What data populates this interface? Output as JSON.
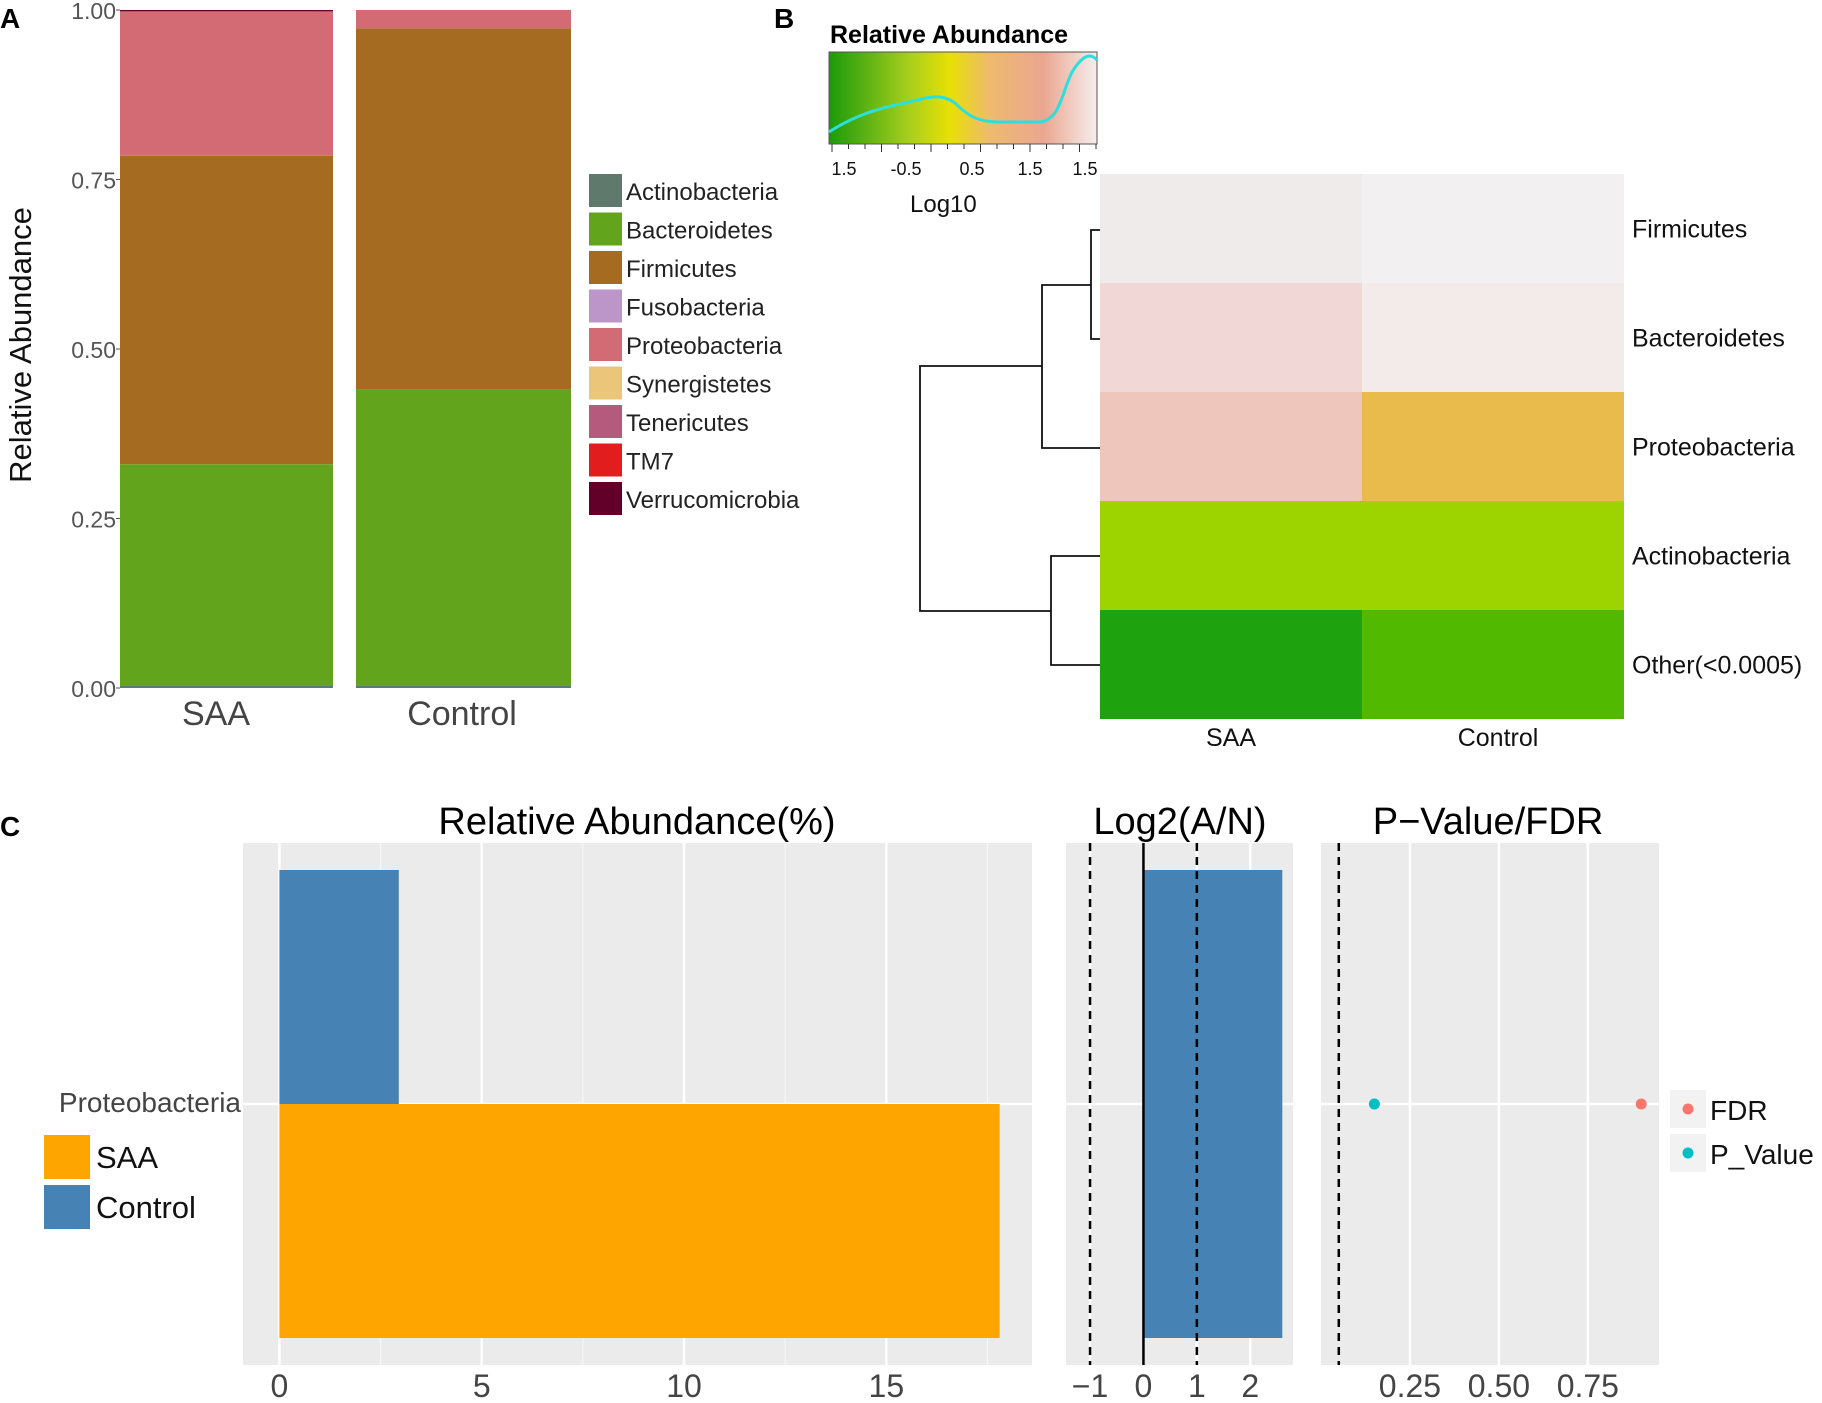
{
  "panels": {
    "a": "A",
    "b": "B",
    "c": "C"
  },
  "chart_data": [
    {
      "id": "A",
      "type": "bar",
      "stacked": true,
      "ylabel": "Relative Abundance",
      "ylim": [
        0,
        1
      ],
      "yticks": [
        "0.00",
        "0.25",
        "0.50",
        "0.75",
        "1.00"
      ],
      "categories": [
        "SAA",
        "Control"
      ],
      "series": [
        {
          "name": "Actinobacteria",
          "color": "#5f7a6d",
          "values": [
            0.003,
            0.003
          ]
        },
        {
          "name": "Bacteroidetes",
          "color": "#62a51d",
          "values": [
            0.327,
            0.437
          ]
        },
        {
          "name": "Firmicutes",
          "color": "#a56b20",
          "values": [
            0.455,
            0.533
          ]
        },
        {
          "name": "Fusobacteria",
          "color": "#bc95c9",
          "values": [
            0.0,
            0.0
          ]
        },
        {
          "name": "Proteobacteria",
          "color": "#d26b73",
          "values": [
            0.213,
            0.027
          ]
        },
        {
          "name": "Synergistetes",
          "color": "#e9c67a",
          "values": [
            0.0,
            0.0
          ]
        },
        {
          "name": "Tenericutes",
          "color": "#b55a7c",
          "values": [
            0.0,
            0.0
          ]
        },
        {
          "name": "TM7",
          "color": "#e21d1d",
          "values": [
            0.0,
            0.0
          ]
        },
        {
          "name": "Verrucomicrobia",
          "color": "#620029",
          "values": [
            0.002,
            0.0
          ]
        }
      ]
    },
    {
      "id": "B",
      "type": "heatmap",
      "legend_title": "Relative Abundance",
      "legend_xlabel": "Log10",
      "legend_ticks": [
        "1.5",
        "-0.5",
        "0.5",
        "1.5",
        "1.5"
      ],
      "columns": [
        "SAA",
        "Control"
      ],
      "rows": [
        "Firmicutes",
        "Bacteroidetes",
        "Proteobacteria",
        "Actinobacteria",
        "Other(<0.0005)"
      ],
      "colors": [
        [
          "#f0ebeb",
          "#f2f0f0"
        ],
        [
          "#f1d8d6",
          "#f2ebea"
        ],
        [
          "#eec6bc",
          "#e8bb4c"
        ],
        [
          "#9dd400",
          "#9dd400"
        ],
        [
          "#1ea20e",
          "#51ba00"
        ]
      ]
    },
    {
      "id": "C",
      "type": "bar",
      "category": "Proteobacteria",
      "legend": [
        {
          "name": "SAA",
          "color": "#ffa500"
        },
        {
          "name": "Control",
          "color": "#4682b4"
        }
      ],
      "abundance": {
        "title": "Relative Abundance(%)",
        "xlim": [
          -0.9,
          18.6
        ],
        "ticks": [
          "0",
          "5",
          "10",
          "15"
        ],
        "values": {
          "SAA": 17.8,
          "Control": 2.95
        }
      },
      "log2": {
        "title": "Log2(A/N)",
        "xlim": [
          -1.45,
          2.8
        ],
        "ticks": [
          "−1",
          "0",
          "1",
          "2"
        ],
        "value": 2.6,
        "dashed": [
          -1,
          1
        ]
      },
      "pvalue": {
        "title": "P−Value/FDR",
        "xlim": [
          0.0,
          0.95
        ],
        "ticks": [
          "0.25",
          "0.50",
          "0.75"
        ],
        "cutoff": 0.05,
        "points": [
          {
            "name": "FDR",
            "color": "#f8766d",
            "value": 0.9
          },
          {
            "name": "P_Value",
            "color": "#00bfc4",
            "value": 0.15
          }
        ]
      }
    }
  ]
}
